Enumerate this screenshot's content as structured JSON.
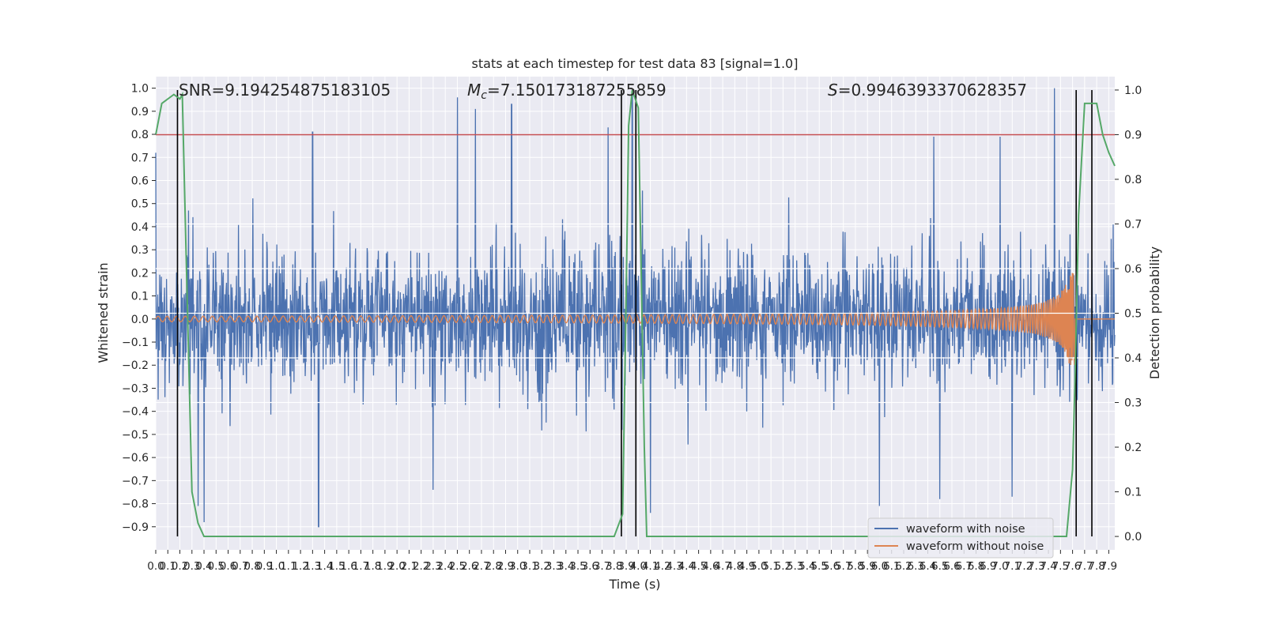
{
  "chart_data": {
    "type": "line",
    "title": "stats at each timestep for test data 83 [signal=1.0]",
    "xlabel": "Time (s)",
    "ylabel": "Whitened strain",
    "ylabel_right": "Detection probability",
    "xlim": [
      0.0,
      7.95
    ],
    "ylim": [
      -1.0,
      1.05
    ],
    "ylim_right": [
      -0.03,
      1.03
    ],
    "grid": true,
    "legend_position": "bottom-right",
    "x_ticks": [
      "0.0",
      "0.1",
      "0.2",
      "0.3",
      "0.4",
      "0.5",
      "0.6",
      "0.7",
      "0.8",
      "0.9",
      "1.0",
      "1.1",
      "1.2",
      "1.3",
      "1.4",
      "1.5",
      "1.6",
      "1.7",
      "1.8",
      "1.9",
      "2.0",
      "2.1",
      "2.2",
      "2.3",
      "2.4",
      "2.5",
      "2.6",
      "2.7",
      "2.8",
      "2.9",
      "3.0",
      "3.1",
      "3.2",
      "3.3",
      "3.4",
      "3.5",
      "3.6",
      "3.7",
      "3.8",
      "3.9",
      "4.0",
      "4.1",
      "4.2",
      "4.3",
      "4.4",
      "4.5",
      "4.6",
      "4.7",
      "4.8",
      "4.9",
      "5.0",
      "5.1",
      "5.2",
      "5.3",
      "5.4",
      "5.5",
      "5.6",
      "5.7",
      "5.8",
      "5.9",
      "6.0",
      "6.1",
      "6.2",
      "6.3",
      "6.4",
      "6.5",
      "6.6",
      "6.7",
      "6.8",
      "6.9",
      "7.0",
      "7.1",
      "7.2",
      "7.3",
      "7.4",
      "7.5",
      "7.6",
      "7.7",
      "7.8",
      "7.9"
    ],
    "y_ticks": [
      "1.0",
      "0.9",
      "0.8",
      "0.7",
      "0.6",
      "0.5",
      "0.4",
      "0.3",
      "0.2",
      "0.1",
      "0.0",
      "−0.1",
      "−0.2",
      "−0.3",
      "−0.4",
      "−0.5",
      "−0.6",
      "−0.7",
      "−0.8",
      "−0.9"
    ],
    "y_right_ticks": [
      "1.0",
      "0.9",
      "0.8",
      "0.7",
      "0.6",
      "0.5",
      "0.4",
      "0.3",
      "0.2",
      "0.1",
      "0.0"
    ],
    "annotations": {
      "snr": "SNR=9.194254875183105",
      "mc_symbol": "M",
      "mc_sub": "c",
      "mc_value": "=7.150173187255859",
      "s_symbol": "S",
      "s_value": "=0.9946393370628357"
    },
    "series": [
      {
        "name": "waveform with noise",
        "color": "#4c72b0",
        "description_type": "noise",
        "envelope_sigma": 0.22,
        "spike_positive": [
          [
            0.0,
            0.72
          ],
          [
            1.3,
            0.81
          ],
          [
            2.5,
            0.96
          ],
          [
            2.65,
            0.91
          ],
          [
            2.95,
            0.93
          ],
          [
            3.75,
            0.83
          ],
          [
            3.95,
            0.97
          ],
          [
            7.45,
            1.0
          ],
          [
            7.0,
            0.79
          ],
          [
            6.45,
            0.79
          ]
        ],
        "spike_negative": [
          [
            0.4,
            -0.88
          ],
          [
            1.35,
            -0.9
          ],
          [
            0.35,
            -0.81
          ],
          [
            2.3,
            -0.74
          ],
          [
            4.1,
            -0.84
          ],
          [
            6.0,
            -0.81
          ],
          [
            6.5,
            -0.78
          ],
          [
            7.1,
            -0.77
          ]
        ]
      },
      {
        "name": "waveform without noise",
        "color": "#dd8452",
        "description_type": "chirp",
        "merger_time": 7.62,
        "amplitude_start": 0.012,
        "amplitude_peak": 0.2
      },
      {
        "name": "Detection probability",
        "color": "#55a868",
        "axis": "right",
        "x": [
          0.0,
          0.05,
          0.1,
          0.15,
          0.2,
          0.22,
          0.25,
          0.3,
          0.35,
          0.4,
          1.0,
          2.0,
          3.0,
          3.8,
          3.87,
          3.9,
          3.92,
          3.95,
          4.0,
          4.05,
          4.07,
          4.1,
          5.0,
          6.0,
          7.0,
          7.55,
          7.6,
          7.62,
          7.65,
          7.7,
          7.75,
          7.8,
          7.85,
          7.9,
          7.95
        ],
        "y": [
          0.9,
          0.97,
          0.98,
          0.99,
          0.98,
          0.99,
          0.65,
          0.1,
          0.03,
          0.0,
          0.0,
          0.0,
          0.0,
          0.0,
          0.05,
          0.55,
          0.92,
          1.0,
          0.96,
          0.2,
          0.0,
          0.0,
          0.0,
          0.0,
          0.0,
          0.0,
          0.15,
          0.35,
          0.72,
          0.97,
          0.97,
          0.97,
          0.9,
          0.86,
          0.83
        ]
      }
    ],
    "threshold": {
      "color": "#c44e52",
      "value": 0.9
    },
    "vertical_lines": [
      0.18,
      3.86,
      3.98,
      7.63,
      7.76
    ],
    "white_hlines_right": [
      0.7,
      0.6,
      0.5,
      0.4,
      0.3
    ],
    "legend": [
      {
        "label": "waveform with noise",
        "color": "#4c72b0"
      },
      {
        "label": "waveform without noise",
        "color": "#dd8452"
      }
    ]
  }
}
